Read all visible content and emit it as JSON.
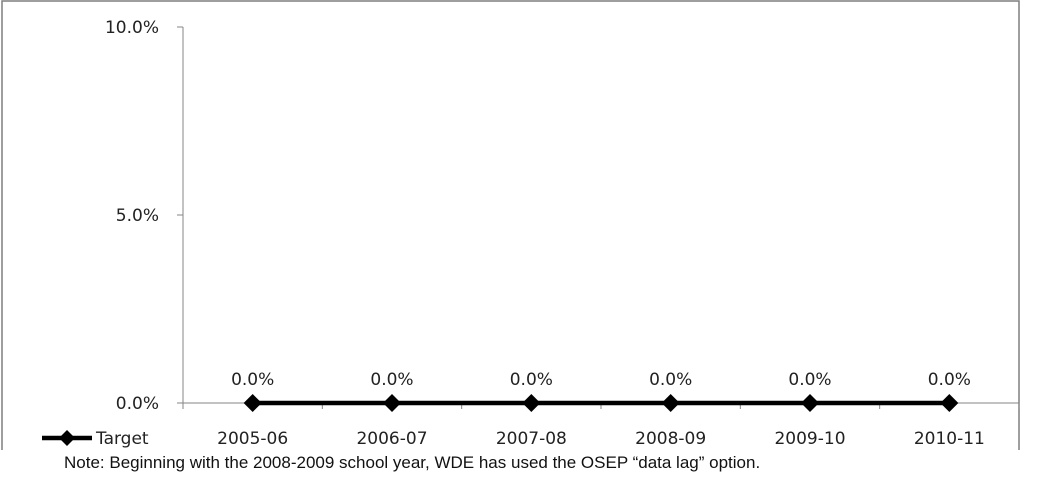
{
  "chart_data": {
    "type": "line",
    "categories": [
      "2005-06",
      "2006-07",
      "2007-08",
      "2008-09",
      "2009-10",
      "2010-11"
    ],
    "series": [
      {
        "name": "Target",
        "values": [
          0.0,
          0.0,
          0.0,
          0.0,
          0.0,
          0.0
        ],
        "color": "#000000",
        "marker": "diamond"
      }
    ],
    "data_labels": [
      "0.0%",
      "0.0%",
      "0.0%",
      "0.0%",
      "0.0%",
      "0.0%"
    ],
    "ylim": [
      0,
      10
    ],
    "y_ticks": [
      0,
      5,
      10
    ],
    "y_tick_labels": [
      "0.0%",
      "5.0%",
      "10.0%"
    ],
    "grid": false,
    "legend_position": "bottom-left",
    "note": "Note:  Beginning with the 2008-2009 school year, WDE has used the OSEP “data lag” option."
  }
}
